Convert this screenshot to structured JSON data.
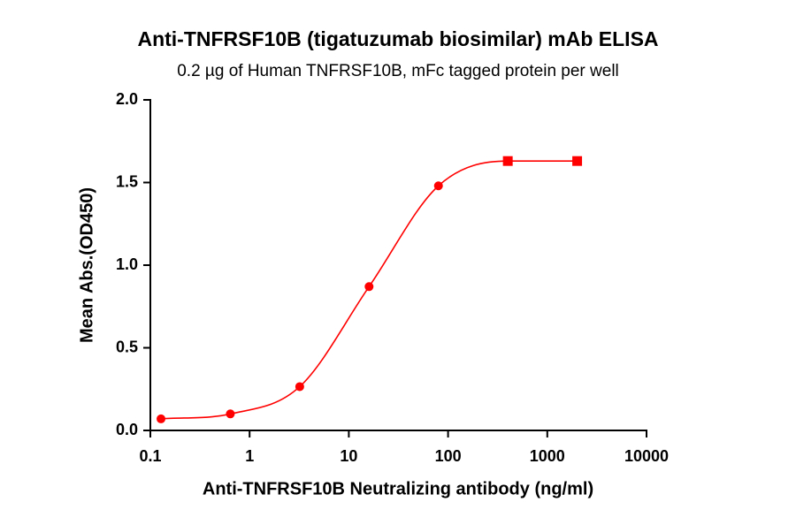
{
  "chart_data": {
    "type": "scatter",
    "title": "Anti-TNFRSF10B (tigatuzumab biosimilar) mAb ELISA",
    "subtitle": "0.2 µg of Human TNFRSF10B, mFc tagged protein per well",
    "x_label": "Anti-TNFRSF10B Neutralizing antibody (ng/ml)",
    "y_label": "Mean Abs.(OD450)",
    "x": [
      0.128,
      0.64,
      3.2,
      16,
      80,
      400,
      2000
    ],
    "values": [
      0.07,
      0.1,
      0.265,
      0.87,
      1.48,
      1.63,
      1.63
    ],
    "errors": [
      0,
      0,
      0,
      0,
      0,
      0.025,
      0.025
    ],
    "color": "#ff0000",
    "xscale": "log",
    "xlim": [
      0.1,
      10000
    ],
    "xticks": [
      0.1,
      1,
      10,
      100,
      1000,
      10000
    ],
    "ylim": [
      0,
      2
    ],
    "yticks": [
      {
        "value": 0,
        "label": "0.0"
      },
      {
        "value": 0.5,
        "label": "0.5"
      },
      {
        "value": 1,
        "label": "1.0"
      },
      {
        "value": 1.5,
        "label": "1.5"
      },
      {
        "value": 2,
        "label": "2.0"
      }
    ]
  }
}
